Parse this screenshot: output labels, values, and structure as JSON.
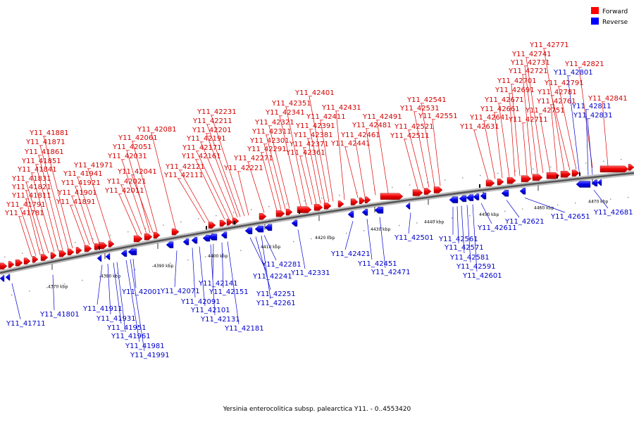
{
  "legend": [
    {
      "label": "Forward",
      "color": "#ff0000"
    },
    {
      "label": "Reverse",
      "color": "#0000ff"
    }
  ],
  "colors": {
    "forward_label": "#d40000",
    "reverse_label": "#0000cc",
    "backbone": "#888888"
  },
  "caption": "Yersinia enterocolitica subsp. palearctica Y11. - 0..4553420",
  "scale_ticks": [
    "4370 kbp",
    "4380 kbp",
    "4390 kbp",
    "4400 kbp",
    "4410 kbp",
    "4420 kbp",
    "4430 kbp",
    "4440 kbp",
    "4450 kbp",
    "4460 kbp",
    "4470 kbp"
  ],
  "forward_genes": [
    "Y11_41781",
    "Y11_41791",
    "Y11_41811",
    "Y11_41821",
    "Y11_41831",
    "Y11_41841",
    "Y11_41851",
    "Y11_41861",
    "Y11_41871",
    "Y11_41881",
    "Y11_41891",
    "Y11_41901",
    "Y11_41921",
    "Y11_41941",
    "Y11_41971",
    "Y11_42011",
    "Y11_42021",
    "Y11_42041",
    "Y11_42031",
    "Y11_42051",
    "Y11_42061",
    "Y11_42081",
    "Y11_42111",
    "Y11_42121",
    "Y11_42161",
    "Y11_42171",
    "Y11_42191",
    "Y11_42201",
    "Y11_42211",
    "Y11_42231",
    "Y11_42221",
    "Y11_42271",
    "Y11_42291",
    "Y11_42301",
    "Y11_42311",
    "Y11_42321",
    "Y11_42341",
    "Y11_42351",
    "Y11_42361",
    "Y11_42371",
    "Y11_42381",
    "Y11_42391",
    "Y11_42401",
    "Y11_42411",
    "Y11_42431",
    "Y11_42441",
    "Y11_42461",
    "Y11_42481",
    "Y11_42491",
    "Y11_42511",
    "Y11_42521",
    "Y11_42531",
    "Y11_42541",
    "Y11_42551",
    "Y11_42631",
    "Y11_42641",
    "Y11_42661",
    "Y11_42671",
    "Y11_42691",
    "Y11_42701",
    "Y11_42711",
    "Y11_42721",
    "Y11_42731",
    "Y11_42741",
    "Y11_42751",
    "Y11_42761",
    "Y11_42771",
    "Y11_42781",
    "Y11_42791",
    "Y11_42821",
    "Y11_42841"
  ],
  "reverse_genes": [
    "Y11_41711",
    "Y11_41801",
    "Y11_41911",
    "Y11_41931",
    "Y11_41951",
    "Y11_41961",
    "Y11_41981",
    "Y11_41991",
    "Y11_42001",
    "Y11_42071",
    "Y11_42091",
    "Y11_42101",
    "Y11_42131",
    "Y11_42141",
    "Y11_42151",
    "Y11_42181",
    "Y11_42241",
    "Y11_42251",
    "Y11_42261",
    "Y11_42281",
    "Y11_42331",
    "Y11_42421",
    "Y11_42451",
    "Y11_42471",
    "Y11_42501",
    "Y11_42561",
    "Y11_42571",
    "Y11_42581",
    "Y11_42591",
    "Y11_42601",
    "Y11_42611",
    "Y11_42621",
    "Y11_42651",
    "Y11_42681",
    "Y11_42801",
    "Y11_42811",
    "Y11_42831"
  ]
}
